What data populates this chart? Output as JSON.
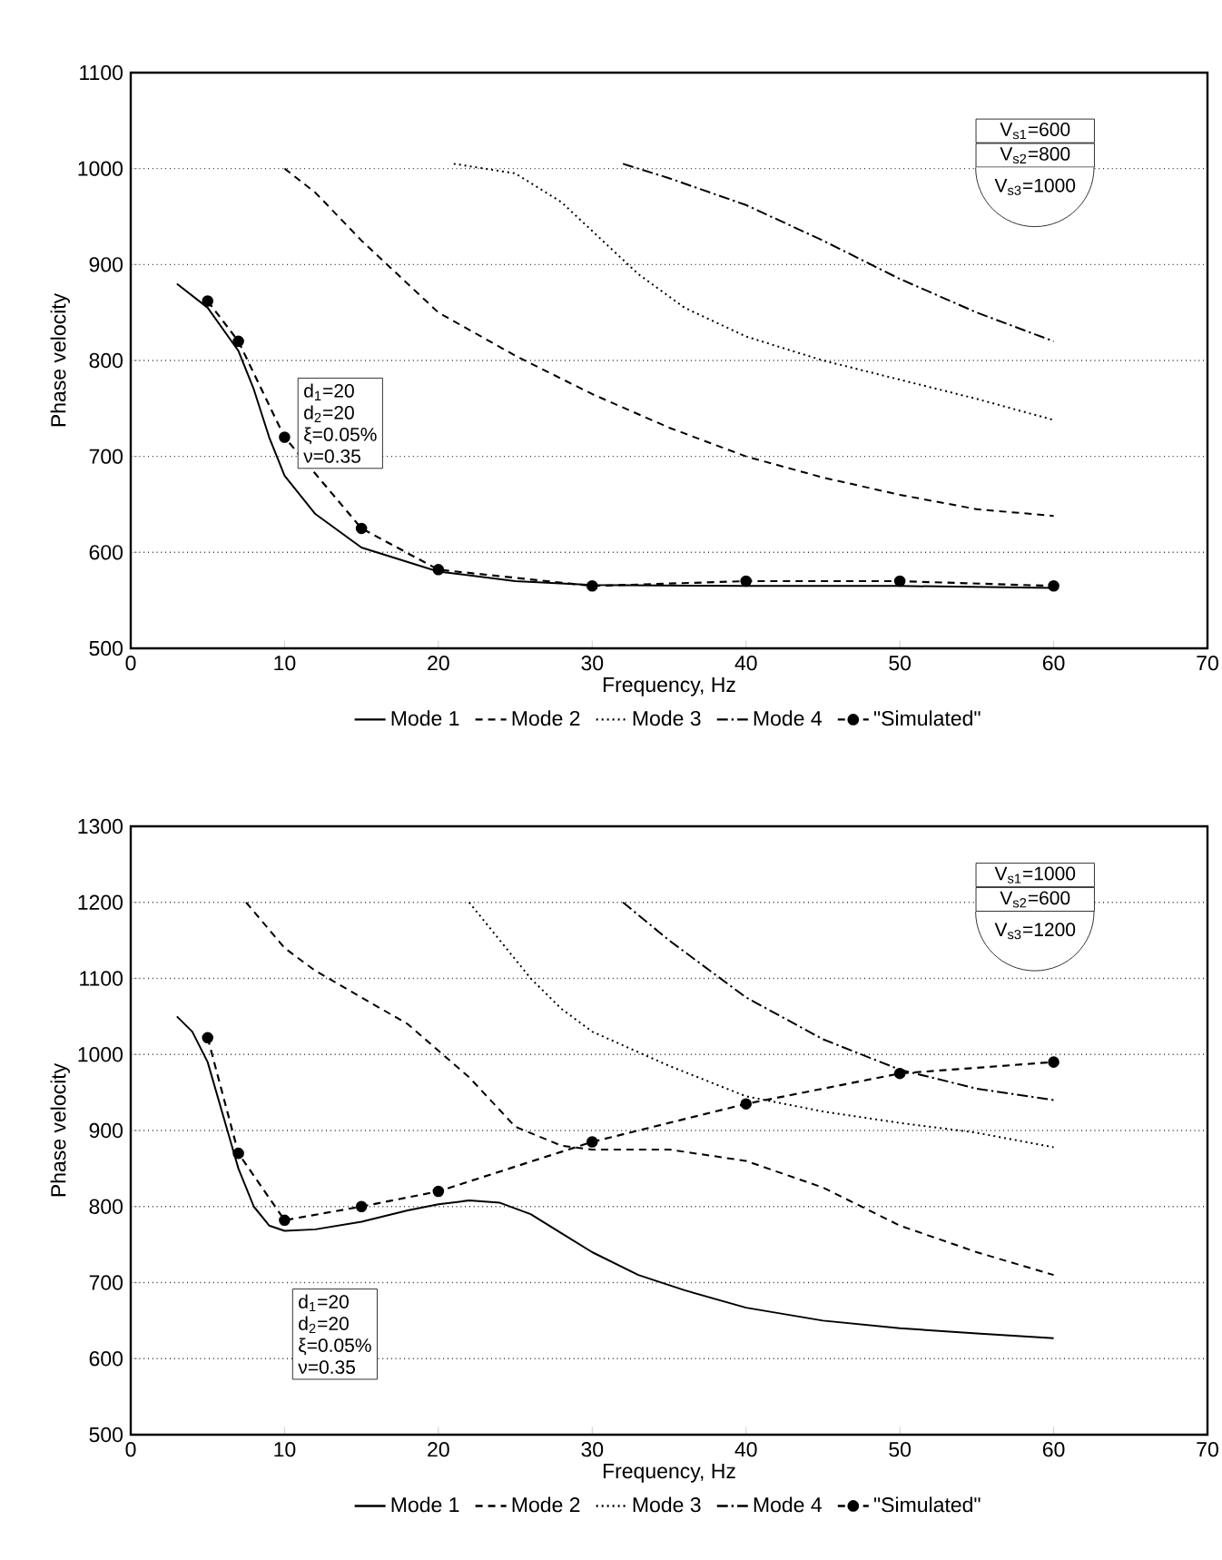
{
  "chart_data": [
    {
      "type": "line",
      "xlabel": "Frequency, Hz",
      "ylabel": "Phase velocity",
      "xlim": [
        0,
        70
      ],
      "ylim": [
        500,
        1100
      ],
      "xticks": [
        0,
        10,
        20,
        30,
        40,
        50,
        60,
        70
      ],
      "yticks": [
        500,
        600,
        700,
        800,
        900,
        1000,
        1100
      ],
      "grid": "y",
      "legend": "bottom",
      "annotations": [
        "d$_{1}$=20",
        "d$_{2}$=20",
        "ξ=0.05%",
        "ν=0.35",
        "V$_{s1}$=600",
        "V$_{s2}$=800",
        "V$_{s3}$=1000"
      ],
      "series": [
        {
          "name": "Mode 1",
          "color": "#000000",
          "line_style": "solid",
          "x": [
            3,
            5,
            7,
            8,
            9,
            10,
            12,
            15,
            20,
            25,
            30,
            40,
            50,
            60
          ],
          "values": [
            880,
            855,
            810,
            770,
            720,
            680,
            640,
            605,
            580,
            570,
            566,
            565,
            565,
            563
          ]
        },
        {
          "name": "Mode 2",
          "color": "#000000",
          "line_style": "dashed",
          "x": [
            10,
            12,
            15,
            18,
            20,
            25,
            30,
            35,
            40,
            45,
            50,
            55,
            60
          ],
          "values": [
            1000,
            975,
            925,
            880,
            850,
            805,
            765,
            730,
            700,
            678,
            660,
            645,
            638
          ]
        },
        {
          "name": "Mode 3",
          "color": "#000000",
          "line_style": "dotted",
          "x": [
            21,
            25,
            28,
            30,
            33,
            36,
            40,
            45,
            50,
            55,
            60
          ],
          "values": [
            1005,
            995,
            965,
            935,
            890,
            855,
            825,
            800,
            780,
            760,
            738
          ]
        },
        {
          "name": "Mode 4",
          "color": "#000000",
          "line_style": "dashdot",
          "x": [
            32,
            35,
            40,
            45,
            50,
            55,
            60
          ],
          "values": [
            1005,
            990,
            962,
            925,
            885,
            850,
            820
          ]
        },
        {
          "name": "\"Simulated\"",
          "color": "#000000",
          "line_style": "dashed",
          "marker": "circle",
          "x": [
            5,
            7,
            10,
            15,
            20,
            30,
            40,
            50,
            60
          ],
          "values": [
            862,
            820,
            720,
            625,
            582,
            565,
            570,
            570,
            565
          ]
        }
      ]
    },
    {
      "type": "line",
      "xlabel": "Frequency, Hz",
      "ylabel": "Phase velocity",
      "xlim": [
        0,
        70
      ],
      "ylim": [
        500,
        1300
      ],
      "xticks": [
        0,
        10,
        20,
        30,
        40,
        50,
        60,
        70
      ],
      "yticks": [
        500,
        600,
        700,
        800,
        900,
        1000,
        1100,
        1200,
        1300
      ],
      "grid": "y",
      "legend": "bottom",
      "annotations": [
        "d$_{1}$=20",
        "d$_{2}$=20",
        "ξ=0.05%",
        "ν=0.35",
        "V$_{s1}$=1000",
        "V$_{s2}$=600",
        "V$_{s3}$=1200"
      ],
      "series": [
        {
          "name": "Mode 1",
          "color": "#000000",
          "line_style": "solid",
          "x": [
            3,
            4,
            5,
            6,
            7,
            8,
            9,
            10,
            12,
            15,
            18,
            20,
            22,
            24,
            26,
            28,
            30,
            33,
            36,
            40,
            45,
            50,
            55,
            60
          ],
          "values": [
            1050,
            1030,
            990,
            920,
            850,
            800,
            775,
            768,
            770,
            780,
            795,
            803,
            808,
            805,
            790,
            765,
            740,
            710,
            690,
            667,
            650,
            640,
            633,
            627
          ]
        },
        {
          "name": "Mode 2",
          "color": "#000000",
          "line_style": "dashed",
          "x": [
            7.5,
            10,
            12,
            15,
            18,
            20,
            22,
            25,
            28,
            30,
            35,
            40,
            45,
            50,
            55,
            60
          ],
          "values": [
            1200,
            1140,
            1110,
            1075,
            1040,
            1005,
            970,
            905,
            880,
            875,
            875,
            860,
            825,
            775,
            740,
            710
          ]
        },
        {
          "name": "Mode 3",
          "color": "#000000",
          "line_style": "dotted",
          "x": [
            22,
            24,
            26,
            28,
            30,
            35,
            40,
            45,
            50,
            55,
            60
          ],
          "values": [
            1200,
            1150,
            1100,
            1060,
            1030,
            985,
            945,
            925,
            910,
            897,
            878
          ]
        },
        {
          "name": "Mode 4",
          "color": "#000000",
          "line_style": "dashdot",
          "x": [
            32,
            35,
            38,
            40,
            45,
            50,
            55,
            60
          ],
          "values": [
            1200,
            1150,
            1105,
            1075,
            1020,
            980,
            955,
            940
          ]
        },
        {
          "name": "\"Simulated\"",
          "color": "#000000",
          "line_style": "dashed",
          "marker": "circle",
          "x": [
            5,
            7,
            10,
            15,
            20,
            30,
            40,
            50,
            60
          ],
          "values": [
            1022,
            870,
            782,
            800,
            820,
            885,
            935,
            975,
            990
          ]
        }
      ]
    }
  ]
}
